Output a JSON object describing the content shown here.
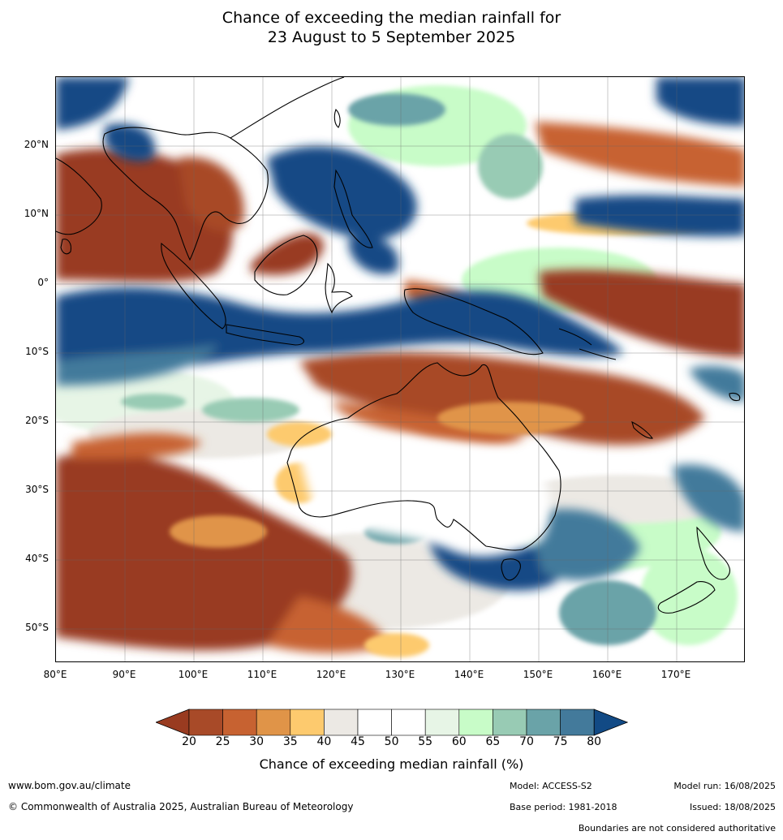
{
  "title_line1": "Chance of exceeding the median rainfall for",
  "title_line2": "23 August to 5 September 2025",
  "lat_ticks": [
    "20°N",
    "10°N",
    "0°",
    "10°S",
    "20°S",
    "30°S",
    "40°S",
    "50°S"
  ],
  "lon_ticks": [
    "80°E",
    "90°E",
    "100°E",
    "110°E",
    "120°E",
    "130°E",
    "140°E",
    "150°E",
    "160°E",
    "170°E"
  ],
  "colorbar": {
    "label": "Chance of exceeding median rainfall (%)",
    "ticks": [
      "20",
      "25",
      "30",
      "35",
      "40",
      "45",
      "50",
      "55",
      "60",
      "65",
      "70",
      "75",
      "80"
    ],
    "colors": [
      "#993b20",
      "#a84a28",
      "#c76231",
      "#e09448",
      "#fdca6e",
      "#ece9e4",
      "#ffffff",
      "#ffffff",
      "#e7f5e6",
      "#c8fcc8",
      "#98cbb4",
      "#6aa3a8",
      "#437a9b",
      "#124a85"
    ]
  },
  "footer": {
    "website": "www.bom.gov.au/climate",
    "copyright": "© Commonwealth of Australia 2025, Australian Bureau of Meteorology",
    "model": "Model: ACCESS-S2",
    "base_period": "Base period: 1981-2018",
    "model_run": "Model run: 16/08/2025",
    "issued": "Issued: 18/08/2025",
    "disclaimer": "Boundaries are not considered authoritative"
  }
}
